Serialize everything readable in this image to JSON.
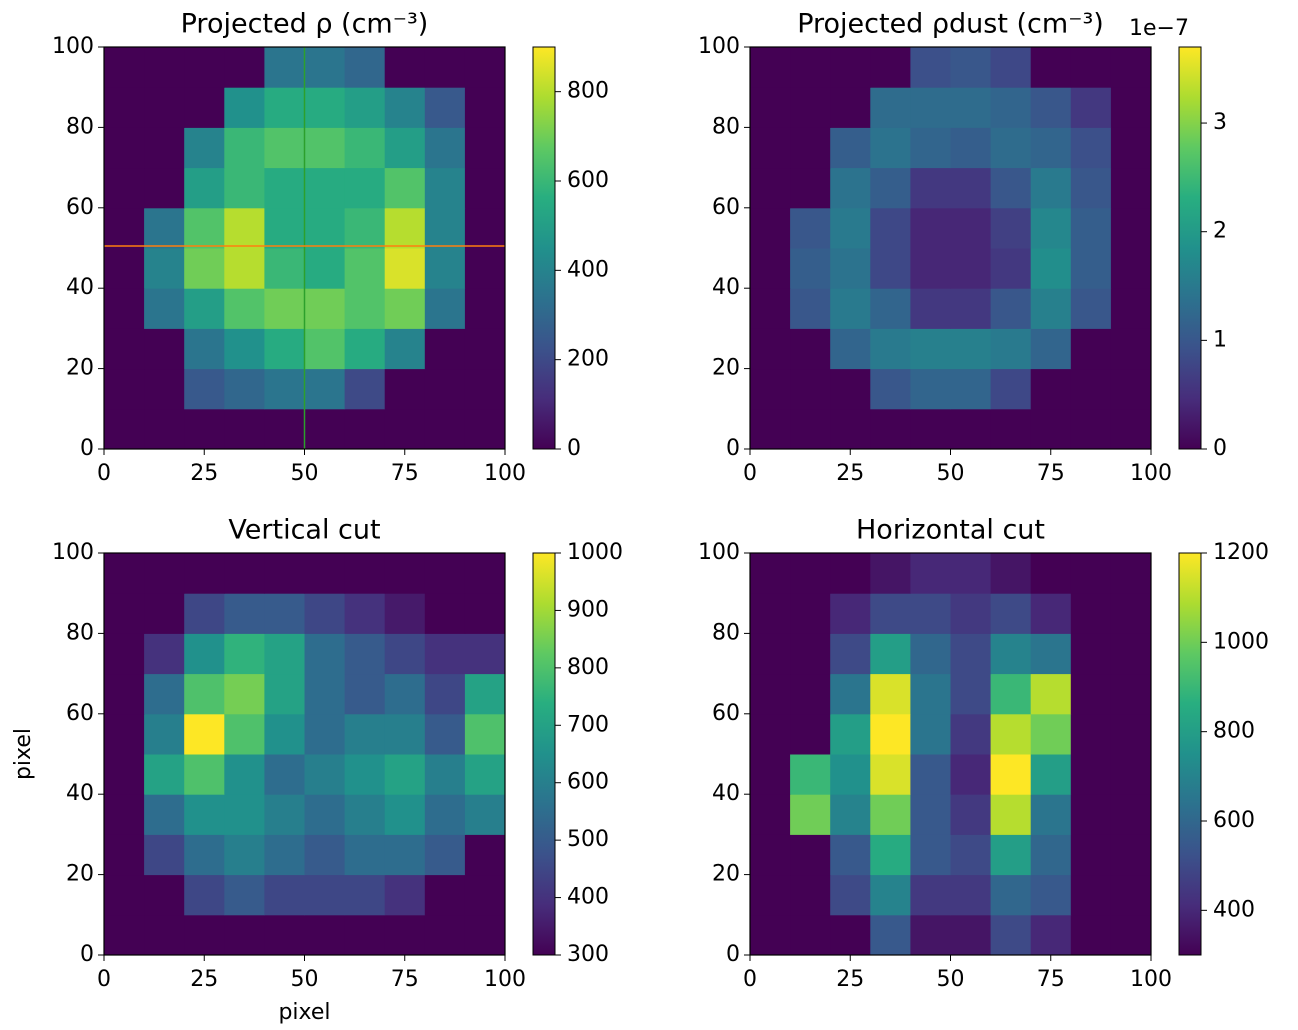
{
  "chart_data": [
    {
      "type": "heatmap",
      "title": "Projected ρ (cm⁻³)",
      "cmap": "viridis",
      "x": [
        5,
        15,
        25,
        35,
        45,
        55,
        65,
        75,
        85,
        95
      ],
      "y": [
        5,
        15,
        25,
        35,
        45,
        55,
        65,
        75,
        85,
        95
      ],
      "z": [
        [
          0,
          0,
          0,
          0,
          0,
          0,
          0,
          0,
          0,
          0
        ],
        [
          0,
          0,
          250,
          300,
          350,
          350,
          200,
          0,
          0,
          0
        ],
        [
          0,
          0,
          350,
          450,
          550,
          650,
          550,
          400,
          0,
          0
        ],
        [
          0,
          350,
          500,
          650,
          700,
          700,
          650,
          700,
          350,
          0
        ],
        [
          0,
          400,
          700,
          800,
          600,
          550,
          650,
          850,
          400,
          0
        ],
        [
          0,
          350,
          650,
          800,
          550,
          550,
          600,
          800,
          400,
          0
        ],
        [
          0,
          0,
          500,
          600,
          550,
          550,
          550,
          650,
          400,
          0
        ],
        [
          0,
          0,
          400,
          600,
          650,
          650,
          600,
          500,
          350,
          0
        ],
        [
          0,
          0,
          0,
          450,
          550,
          550,
          500,
          400,
          250,
          0
        ],
        [
          0,
          0,
          0,
          0,
          350,
          350,
          300,
          0,
          0,
          0
        ]
      ],
      "xlim": [
        0,
        100
      ],
      "ylim": [
        0,
        100
      ],
      "xticks": [
        0,
        25,
        50,
        75,
        100
      ],
      "yticks": [
        0,
        20,
        40,
        60,
        80,
        100
      ],
      "clim": [
        0,
        900
      ],
      "cticks": [
        0,
        200,
        400,
        600,
        800
      ],
      "vline": 50,
      "vline_color": "#2ca02c",
      "hline": 50.5,
      "hline_color": "#ff7f0e"
    },
    {
      "type": "heatmap",
      "title": "Projected ρdust (cm⁻³)",
      "cmap": "viridis",
      "x": [
        5,
        15,
        25,
        35,
        45,
        55,
        65,
        75,
        85,
        95
      ],
      "y": [
        5,
        15,
        25,
        35,
        45,
        55,
        65,
        75,
        85,
        95
      ],
      "z": [
        [
          0,
          0,
          0,
          0,
          0,
          0,
          0,
          0,
          0,
          0
        ],
        [
          0,
          0,
          0,
          1e-07,
          1.2e-07,
          1.2e-07,
          8e-08,
          0,
          0,
          0
        ],
        [
          0,
          0,
          1.2e-07,
          1.5e-07,
          1.6e-07,
          1.6e-07,
          1.5e-07,
          1.2e-07,
          0,
          0
        ],
        [
          0,
          1e-07,
          1.5e-07,
          1.2e-07,
          6e-08,
          6e-08,
          1e-07,
          1.6e-07,
          1e-07,
          0
        ],
        [
          0,
          1.1e-07,
          1.4e-07,
          8e-08,
          4e-08,
          4e-08,
          6e-08,
          1.8e-07,
          1.1e-07,
          0
        ],
        [
          0,
          1e-07,
          1.5e-07,
          8e-08,
          4e-08,
          4e-08,
          7e-08,
          1.7e-07,
          1.1e-07,
          0
        ],
        [
          0,
          0,
          1.4e-07,
          1.1e-07,
          6e-08,
          6e-08,
          1e-07,
          1.5e-07,
          1e-07,
          0
        ],
        [
          0,
          0,
          1.1e-07,
          1.4e-07,
          1.2e-07,
          1.1e-07,
          1.3e-07,
          1.2e-07,
          9e-08,
          0
        ],
        [
          0,
          0,
          0,
          1.3e-07,
          1.3e-07,
          1.3e-07,
          1.2e-07,
          1e-07,
          6e-08,
          0
        ],
        [
          0,
          0,
          0,
          0,
          9e-08,
          1e-07,
          8e-08,
          0,
          0,
          0
        ]
      ],
      "xlim": [
        0,
        100
      ],
      "ylim": [
        0,
        100
      ],
      "xticks": [
        0,
        25,
        50,
        75,
        100
      ],
      "yticks": [
        0,
        20,
        40,
        60,
        80,
        100
      ],
      "clim": [
        0,
        3.7e-07
      ],
      "cticks": [
        0,
        {
          "value": 1e-07,
          "label": "1"
        },
        {
          "value": 2e-07,
          "label": "2"
        },
        {
          "value": 3e-07,
          "label": "3"
        }
      ],
      "coffset": "1e−7"
    },
    {
      "type": "heatmap",
      "title": "Vertical cut",
      "cmap": "viridis",
      "xlabel": "pixel",
      "ylabel": "pixel",
      "x": [
        5,
        15,
        25,
        35,
        45,
        55,
        65,
        75,
        85,
        95
      ],
      "y": [
        5,
        15,
        25,
        35,
        45,
        55,
        65,
        75,
        85,
        95
      ],
      "z": [
        [
          300,
          300,
          300,
          300,
          300,
          300,
          300,
          300,
          300,
          300
        ],
        [
          300,
          300,
          450,
          500,
          450,
          450,
          450,
          400,
          300,
          300
        ],
        [
          300,
          450,
          550,
          600,
          550,
          500,
          550,
          550,
          500,
          300
        ],
        [
          300,
          550,
          650,
          650,
          600,
          550,
          600,
          650,
          550,
          600
        ],
        [
          300,
          700,
          800,
          650,
          550,
          600,
          650,
          700,
          600,
          700
        ],
        [
          300,
          600,
          1000,
          800,
          650,
          550,
          600,
          600,
          500,
          800
        ],
        [
          300,
          550,
          800,
          850,
          700,
          550,
          500,
          550,
          450,
          700
        ],
        [
          300,
          400,
          650,
          750,
          700,
          550,
          500,
          450,
          400,
          400
        ],
        [
          300,
          300,
          450,
          500,
          500,
          450,
          400,
          350,
          300,
          300
        ],
        [
          300,
          300,
          300,
          300,
          300,
          300,
          300,
          300,
          300,
          300
        ]
      ],
      "xlim": [
        0,
        100
      ],
      "ylim": [
        0,
        100
      ],
      "xticks": [
        0,
        25,
        50,
        75,
        100
      ],
      "yticks": [
        0,
        20,
        40,
        60,
        80,
        100
      ],
      "clim": [
        300,
        1000
      ],
      "cticks": [
        300,
        400,
        500,
        600,
        700,
        800,
        900,
        1000
      ]
    },
    {
      "type": "heatmap",
      "title": "Horizontal cut",
      "cmap": "viridis",
      "x": [
        5,
        15,
        25,
        35,
        45,
        55,
        65,
        75,
        85,
        95
      ],
      "y": [
        5,
        15,
        25,
        35,
        45,
        55,
        65,
        75,
        85,
        95
      ],
      "z": [
        [
          300,
          300,
          300,
          550,
          350,
          350,
          500,
          400,
          300,
          300
        ],
        [
          300,
          300,
          500,
          700,
          450,
          450,
          600,
          550,
          300,
          300
        ],
        [
          300,
          300,
          550,
          850,
          550,
          500,
          800,
          600,
          300,
          300
        ],
        [
          300,
          1000,
          700,
          1000,
          550,
          450,
          1100,
          650,
          300,
          300
        ],
        [
          300,
          900,
          750,
          1150,
          550,
          400,
          1200,
          800,
          300,
          300
        ],
        [
          300,
          300,
          800,
          1200,
          650,
          450,
          1100,
          1000,
          300,
          300
        ],
        [
          300,
          300,
          650,
          1150,
          650,
          500,
          900,
          1100,
          300,
          300
        ],
        [
          300,
          300,
          500,
          800,
          600,
          500,
          700,
          650,
          300,
          300
        ],
        [
          300,
          300,
          400,
          500,
          500,
          450,
          500,
          400,
          300,
          300
        ],
        [
          300,
          300,
          300,
          350,
          400,
          400,
          350,
          300,
          300,
          300
        ]
      ],
      "xlim": [
        0,
        100
      ],
      "ylim": [
        0,
        100
      ],
      "xticks": [
        0,
        25,
        50,
        75,
        100
      ],
      "yticks": [
        0,
        20,
        40,
        60,
        80,
        100
      ],
      "clim": [
        300,
        1200
      ],
      "cticks": [
        400,
        600,
        800,
        1000,
        1200
      ]
    }
  ]
}
